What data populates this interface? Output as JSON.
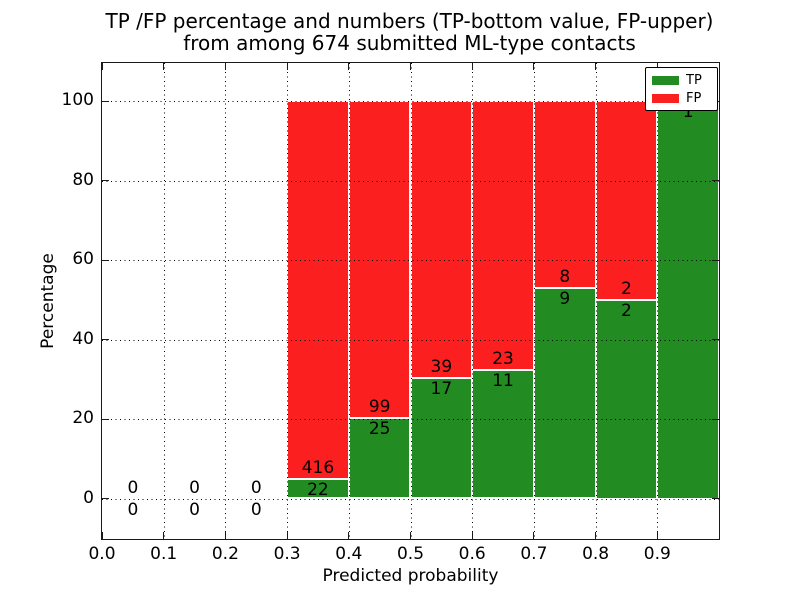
{
  "chart_data": {
    "type": "bar",
    "stacked": true,
    "normalized_to_100_pct": true,
    "title_lines": [
      "TP /FP percentage and numbers (TP-bottom value, FP-upper)",
      "from among 674 submitted ML-type contacts"
    ],
    "xlabel": "Predicted probability",
    "ylabel": "Percentage",
    "x_tick_labels": [
      "0.0",
      "0.1",
      "0.2",
      "0.3",
      "0.4",
      "0.5",
      "0.6",
      "0.7",
      "0.8",
      "0.9"
    ],
    "y_tick_labels": [
      "0",
      "20",
      "40",
      "60",
      "80",
      "100"
    ],
    "xlim": [
      0.0,
      1.0
    ],
    "y_axis_pct_range_shown": [
      0,
      100
    ],
    "grid": "dotted black, drawn over bars",
    "total_contacts": 674,
    "legend": {
      "position": "upper right",
      "entries": [
        {
          "label": "TP",
          "color": "#228b22"
        },
        {
          "label": "FP",
          "color": "#fb1f1f"
        }
      ]
    },
    "bin_edges": [
      0.0,
      0.1,
      0.2,
      0.3,
      0.4,
      0.5,
      0.6,
      0.7,
      0.8,
      0.9,
      1.0
    ],
    "bins": [
      {
        "range": "0.0-0.1",
        "tp": 0,
        "fp": 0,
        "fp_label": "0",
        "tp_label": "0"
      },
      {
        "range": "0.1-0.2",
        "tp": 0,
        "fp": 0,
        "fp_label": "0",
        "tp_label": "0"
      },
      {
        "range": "0.2-0.3",
        "tp": 0,
        "fp": 0,
        "fp_label": "0",
        "tp_label": "0"
      },
      {
        "range": "0.3-0.4",
        "tp": 22,
        "fp": 416,
        "fp_label": "416",
        "tp_label": "22"
      },
      {
        "range": "0.4-0.5",
        "tp": 25,
        "fp": 99,
        "fp_label": "99",
        "tp_label": "25"
      },
      {
        "range": "0.5-0.6",
        "tp": 17,
        "fp": 39,
        "fp_label": "39",
        "tp_label": "17"
      },
      {
        "range": "0.6-0.7",
        "tp": 11,
        "fp": 23,
        "fp_label": "23",
        "tp_label": "11"
      },
      {
        "range": "0.7-0.8",
        "tp": 9,
        "fp": 8,
        "fp_label": "8",
        "tp_label": "9"
      },
      {
        "range": "0.8-0.9",
        "tp": 2,
        "fp": 2,
        "fp_label": "2",
        "tp_label": "2"
      },
      {
        "range": "0.9-1.0",
        "tp": 1,
        "fp": 0,
        "tp_label": "1"
      }
    ]
  }
}
